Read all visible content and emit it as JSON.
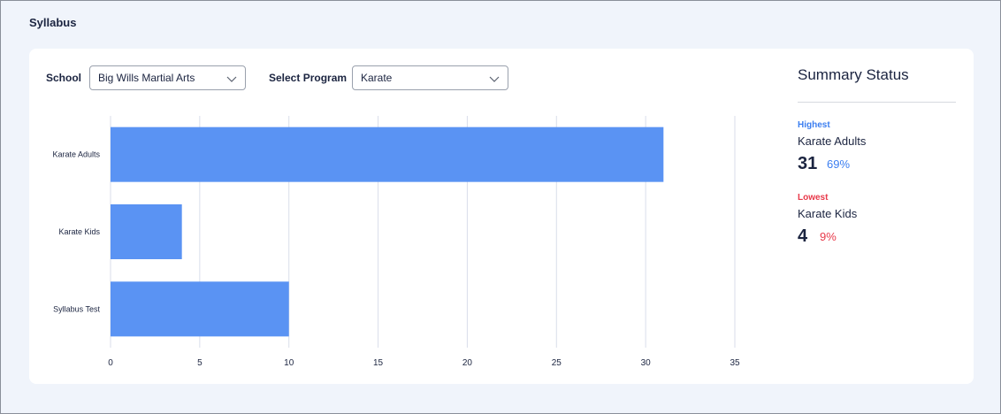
{
  "page": {
    "title": "Syllabus"
  },
  "filters": {
    "school": {
      "label": "School",
      "value": "Big Wills Martial Arts",
      "icon": "chevron-down-icon"
    },
    "program": {
      "label": "Select Program",
      "value": "Karate",
      "icon": "chevron-down-icon"
    }
  },
  "summary": {
    "title": "Summary Status",
    "highest": {
      "tag": "Highest",
      "name": "Karate Adults",
      "count": "31",
      "percent": "69%",
      "color": "#3b7ef0"
    },
    "lowest": {
      "tag": "Lowest",
      "name": "Karate Kids",
      "count": "4",
      "percent": "9%",
      "color": "#e8394a"
    }
  },
  "chart_data": {
    "type": "bar",
    "orientation": "horizontal",
    "categories": [
      "Karate Adults",
      "Karate Kids",
      "Syllabus Test"
    ],
    "values": [
      31,
      4,
      10
    ],
    "xlim": [
      0,
      35
    ],
    "xticks": [
      0,
      5,
      10,
      15,
      20,
      25,
      30,
      35
    ],
    "grid": true,
    "bar_color": "#5a93f3",
    "title": "",
    "xlabel": "",
    "ylabel": ""
  }
}
